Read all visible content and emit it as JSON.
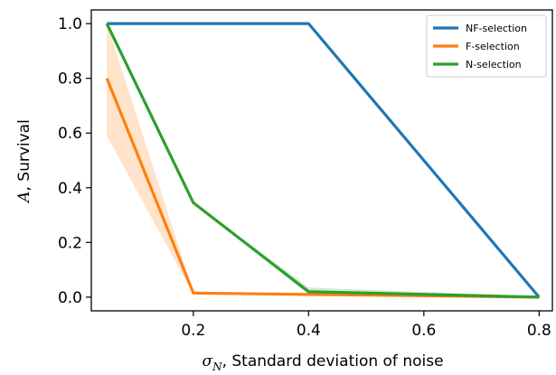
{
  "chart_data": {
    "type": "line",
    "xlabel": {
      "symbol": "σ",
      "subscript": "N",
      "text": ", Standard deviation of noise"
    },
    "ylabel": {
      "symbol": "A",
      "text": ", Survival"
    },
    "xlim": [
      0.023,
      0.823
    ],
    "ylim": [
      -0.05,
      1.05
    ],
    "xticks": [
      0.2,
      0.4,
      0.6,
      0.8
    ],
    "xtick_labels": [
      "0.2",
      "0.4",
      "0.6",
      "0.8"
    ],
    "yticks": [
      0.0,
      0.2,
      0.4,
      0.6,
      0.8,
      1.0
    ],
    "ytick_labels": [
      "0.0",
      "0.2",
      "0.4",
      "0.6",
      "0.8",
      "1.0"
    ],
    "grid": false,
    "legend_position": "top-right",
    "x": [
      0.05,
      0.2,
      0.4,
      0.8
    ],
    "series": [
      {
        "name": "NF-selection",
        "color": "#1f77b4",
        "values": [
          1.0,
          1.0,
          1.0,
          0.0
        ],
        "band": null
      },
      {
        "name": "F-selection",
        "color": "#ff7f0e",
        "values": [
          0.8,
          0.015,
          0.01,
          0.0
        ],
        "band": {
          "lower": [
            0.59,
            0.01,
            0.005,
            0.0
          ],
          "upper": [
            1.0,
            0.02,
            0.015,
            0.0
          ]
        }
      },
      {
        "name": "N-selection",
        "color": "#2ca02c",
        "values": [
          1.0,
          0.345,
          0.02,
          0.0
        ],
        "band": {
          "lower": [
            1.0,
            0.345,
            0.01,
            0.0
          ],
          "upper": [
            1.0,
            0.345,
            0.035,
            0.003
          ]
        }
      }
    ]
  }
}
